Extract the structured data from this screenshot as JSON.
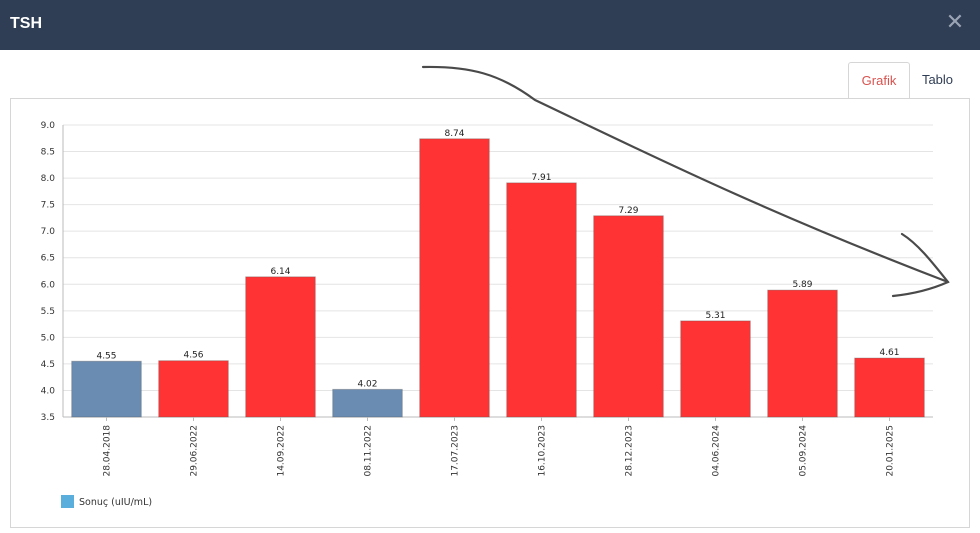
{
  "modal": {
    "title": "TSH",
    "close_icon": "close-icon"
  },
  "tabs": [
    {
      "label": "Grafik",
      "active": true
    },
    {
      "label": "Tablo",
      "active": false
    }
  ],
  "colors": {
    "header_bg": "#2f3d55",
    "normal_bar": "#6a8cb3",
    "high_bar": "#ff3333",
    "legend_swatch": "#5aaedb",
    "active_tab": "#d9534f"
  },
  "chart_data": {
    "type": "bar",
    "categories": [
      "28.04.2018",
      "29.06.2022",
      "14.09.2022",
      "08.11.2022",
      "17.07.2023",
      "16.10.2023",
      "28.12.2023",
      "04.06.2024",
      "05.09.2024",
      "20.01.2025"
    ],
    "series": [
      {
        "name": "Sonuç (uIU/mL)",
        "values": [
          4.55,
          4.56,
          6.14,
          4.02,
          8.74,
          7.91,
          7.29,
          5.31,
          5.89,
          4.61
        ],
        "value_labels": [
          "4.55",
          "4.56",
          "6.14",
          "4.02",
          "8.74",
          "7.91",
          "7.29",
          "5.31",
          "5.89",
          "4.61"
        ],
        "status": [
          "normal",
          "high",
          "high",
          "normal",
          "high",
          "high",
          "high",
          "high",
          "high",
          "high"
        ]
      }
    ],
    "ylim": [
      3.5,
      9.0
    ],
    "yticks": [
      "9.0",
      "8.5",
      "8.0",
      "7.5",
      "7.0",
      "6.5",
      "6.0",
      "5.5",
      "5.0",
      "4.5",
      "4.0",
      "3.5"
    ],
    "grid": true,
    "legend_position": "bottom-left",
    "title": "",
    "xlabel": "",
    "ylabel": ""
  }
}
